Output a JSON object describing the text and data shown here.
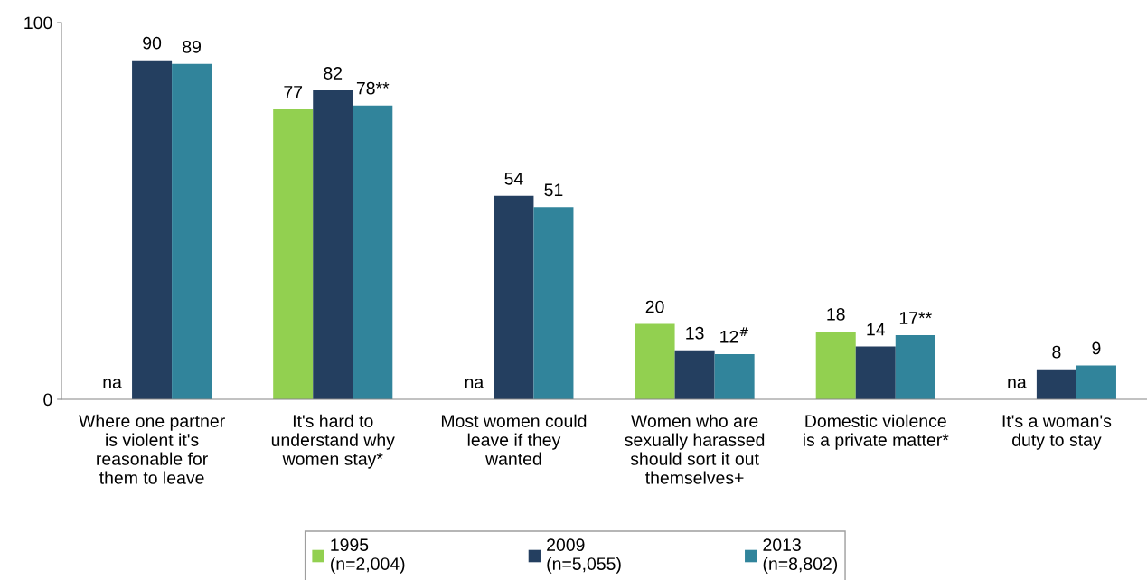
{
  "chart_data": {
    "type": "bar",
    "categories": [
      "Where one partner\nis violent it's\nreasonable for\nthem to leave",
      "It's hard to\nunderstand why\nwomen stay*",
      "Most women could\nleave if they\nwanted",
      "Women who are\nsexually harassed\nshould sort it out\nthemselves+",
      "Domestic violence\nis a private matter*",
      "It's a woman's\nduty to stay"
    ],
    "series": [
      {
        "name": "1995\n(n=2,004)",
        "color": "#92d050",
        "values": [
          null,
          77,
          null,
          20,
          18,
          null
        ],
        "value_labels": [
          "na",
          "77",
          "na",
          "20",
          "18",
          "na"
        ]
      },
      {
        "name": "2009\n(n=5,055)",
        "color": "#243f60",
        "values": [
          90,
          82,
          54,
          13,
          14,
          8
        ],
        "value_labels": [
          "90",
          "82",
          "54",
          "13",
          "14",
          "8"
        ]
      },
      {
        "name": "2013\n(n=8,802)",
        "color": "#31849b",
        "values": [
          89,
          78,
          51,
          12,
          17,
          9
        ],
        "value_labels": [
          "89",
          "78**",
          "51",
          "12$^{#}$",
          "17**",
          "9"
        ]
      }
    ],
    "ylim": [
      0,
      100
    ],
    "yticks": [
      0,
      100
    ],
    "grid": false,
    "legend": "bottom"
  }
}
